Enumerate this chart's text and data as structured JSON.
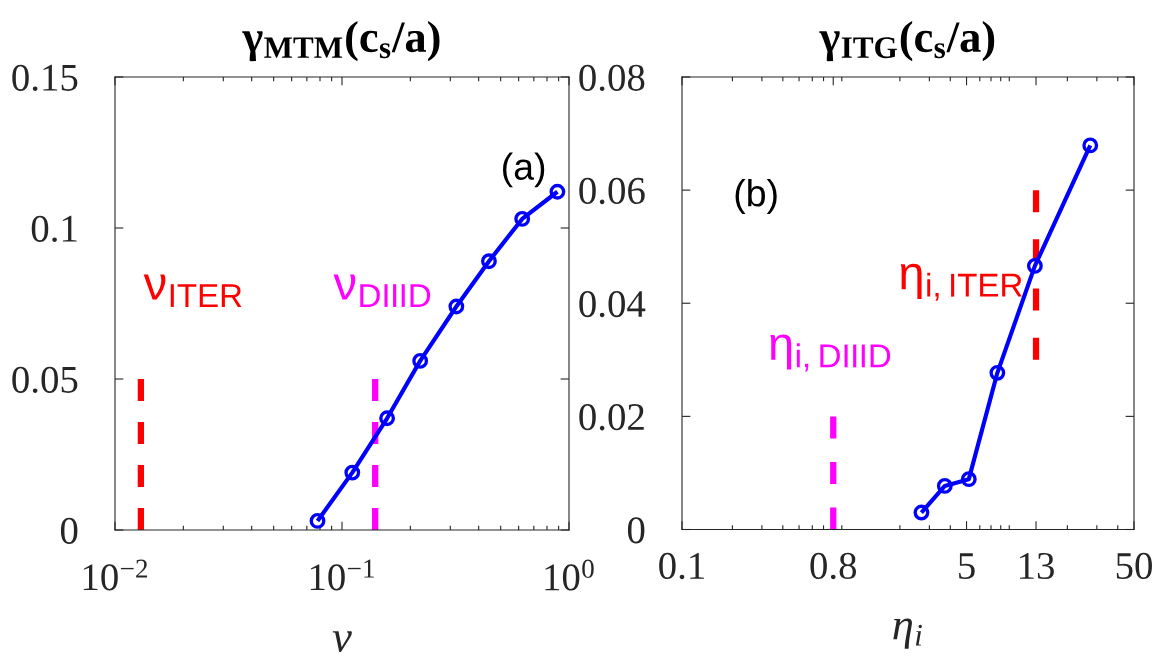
{
  "chart_data": [
    {
      "type": "line",
      "title": "γ$_{MTM}$(c$_{s}$/a)",
      "xlabel": "ν",
      "log": "x",
      "xlim": [
        0.01,
        1
      ],
      "xticks": [
        {
          "value": 0.01,
          "label": "10$^{−2}$"
        },
        {
          "value": 0.1,
          "label": "10$^{−1}$"
        },
        {
          "value": 1,
          "label": "10$^{0}$"
        }
      ],
      "ylim": [
        0,
        0.15
      ],
      "yticks": [
        0,
        0.05,
        0.1,
        0.15
      ],
      "grid": false,
      "legend": false,
      "annotations": [
        "(a)"
      ],
      "series": [
        {
          "color": "#0000ff",
          "marker": "circle",
          "line_style": "solid",
          "x": [
            0.078,
            0.111,
            0.158,
            0.221,
            0.319,
            0.444,
            0.622,
            0.889
          ],
          "values": [
            0.003,
            0.019,
            0.037,
            0.056,
            0.074,
            0.089,
            0.103,
            0.112
          ]
        },
        {
          "name": "ν$_{ITER}$",
          "color": "#ff0000",
          "marker": "none",
          "line_style": "dashed",
          "x": [
            0.013,
            0.013
          ],
          "values": [
            0,
            0.05
          ]
        },
        {
          "name": "ν$_{DIIID}$",
          "color": "#ff00ff",
          "marker": "none",
          "line_style": "dashed",
          "x": [
            0.14,
            0.14
          ],
          "values": [
            0,
            0.05
          ]
        }
      ]
    },
    {
      "type": "line",
      "title": "γ$_{ITG}$(c$_{s}$/a)",
      "xlabel": "η$_{i}$",
      "log": "x",
      "xlim": [
        0.1,
        50
      ],
      "xticks": [
        0.1,
        0.8,
        5,
        13,
        50
      ],
      "ylim": [
        0,
        0.08
      ],
      "yticks": [
        0,
        0.02,
        0.04,
        0.06,
        0.08
      ],
      "grid": false,
      "legend": false,
      "annotations": [
        "(b)"
      ],
      "series": [
        {
          "color": "#0000ff",
          "marker": "circle",
          "line_style": "solid",
          "x": [
            2.69,
            3.71,
            5.16,
            7.64,
            12.8,
            27.4
          ],
          "values": [
            0.003,
            0.0077,
            0.0089,
            0.0277,
            0.0466,
            0.0679
          ]
        },
        {
          "name": "η$_{i,ITER}$",
          "color": "#ff0000",
          "marker": "none",
          "line_style": "dashed",
          "x": [
            13,
            13
          ],
          "values": [
            0.03,
            0.06
          ]
        },
        {
          "name": "η$_{i,DIIID}$",
          "color": "#ff00ff",
          "marker": "none",
          "line_style": "dashed",
          "x": [
            0.8,
            0.8
          ],
          "values": [
            0,
            0.02
          ]
        }
      ]
    }
  ]
}
